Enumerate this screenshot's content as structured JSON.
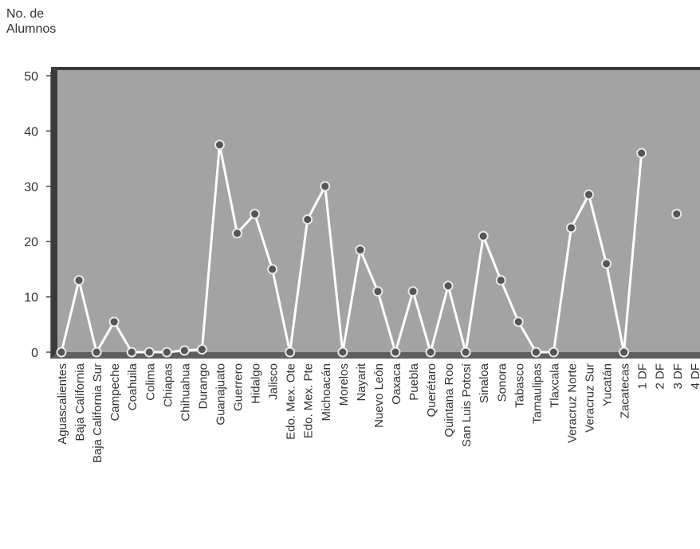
{
  "chart_data": {
    "type": "line",
    "title": "",
    "xlabel": "",
    "ylabel": [
      "No. de",
      "Alumnos"
    ],
    "ylim": [
      0,
      50
    ],
    "yticks": [
      0,
      10,
      20,
      30,
      40,
      50
    ],
    "grid": false,
    "colors": {
      "plot_bg": "#a3a3a3",
      "line": "#ffffff",
      "marker": "#555555",
      "frame": "#3a3a3a",
      "floor": "#5e5e5e"
    },
    "categories": [
      "Aguascalientes",
      "Baja California",
      "Baja California Sur",
      "Campeche",
      "Coahuila",
      "Colima",
      "Chiapas",
      "Chihuahua",
      "Durango",
      "Guanajuato",
      "Guerrero",
      "Hidalgo",
      "Jalisco",
      "Edo. Mex. Ote",
      "Edo. Mex. Pte",
      "Michoacán",
      "Morelos",
      "Nayarit",
      "Nuevo León",
      "Oaxaca",
      "Puebla",
      "Querétaro",
      "Quintana Roo",
      "San Luis Potosí",
      "Sinaloa",
      "Sonora",
      "Tabasco",
      "Tamaulipas",
      "Tlaxcala",
      "Veracruz Norte",
      "Veracruz Sur",
      "Yucatán",
      "Zacatecas",
      "1 DF",
      "2 DF",
      "3 DF",
      "4 DF"
    ],
    "series": [
      {
        "values": [
          0,
          13,
          0,
          5.5,
          0,
          0,
          0,
          0.3,
          0.5,
          37.5,
          21.5,
          25,
          15,
          0,
          24,
          30,
          0,
          18.5,
          11,
          0,
          11,
          0,
          12,
          0,
          21,
          13,
          5.5,
          0,
          0,
          22.5,
          28.5,
          16,
          0,
          36,
          null,
          25,
          null
        ]
      }
    ]
  }
}
